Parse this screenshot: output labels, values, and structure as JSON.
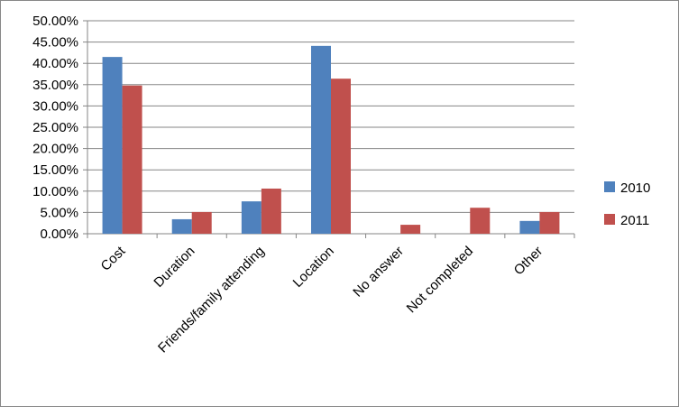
{
  "chart_data": {
    "type": "bar",
    "categories": [
      "Cost",
      "Duration",
      "Friends/family attending",
      "Location",
      "No answer",
      "Not completed",
      "Other"
    ],
    "series": [
      {
        "name": "2010",
        "color": "#4f81bd",
        "values": [
          41.5,
          3.4,
          7.6,
          44.1,
          0,
          0,
          3.0
        ]
      },
      {
        "name": "2011",
        "color": "#c0504d",
        "values": [
          34.8,
          5.1,
          10.6,
          36.4,
          2.1,
          6.1,
          5.1
        ]
      }
    ],
    "ylim": [
      0,
      50
    ],
    "yticks": [
      {
        "value": 0,
        "label": "0.00%"
      },
      {
        "value": 5,
        "label": "5.00%"
      },
      {
        "value": 10,
        "label": "10.00%"
      },
      {
        "value": 15,
        "label": "15.00%"
      },
      {
        "value": 20,
        "label": "20.00%"
      },
      {
        "value": 25,
        "label": "25.00%"
      },
      {
        "value": 30,
        "label": "30.00%"
      },
      {
        "value": 35,
        "label": "35.00%"
      },
      {
        "value": 40,
        "label": "40.00%"
      },
      {
        "value": 45,
        "label": "45.00%"
      },
      {
        "value": 50,
        "label": "50.00%"
      }
    ],
    "grid": true,
    "legend": "right"
  }
}
